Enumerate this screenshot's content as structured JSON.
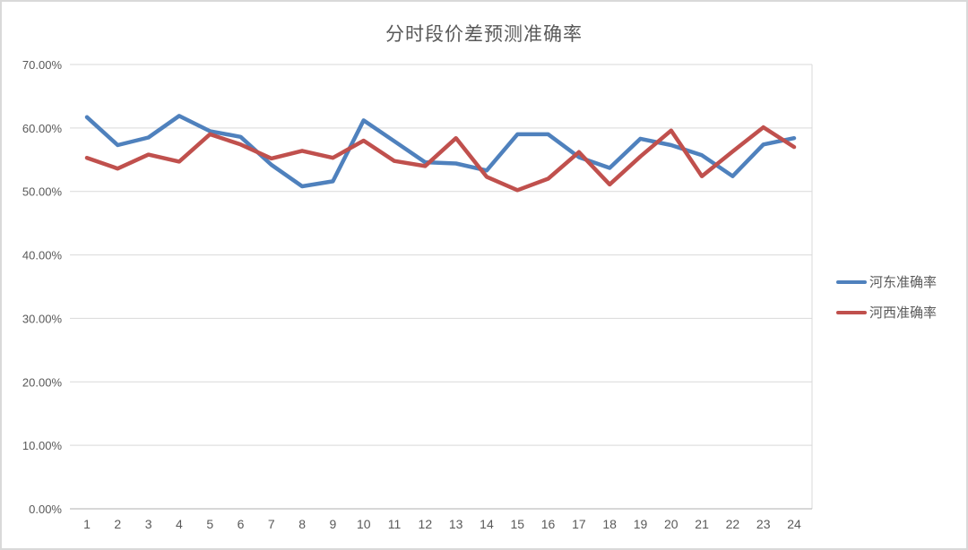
{
  "chart_data": {
    "type": "line",
    "title": "分时段价差预测准确率",
    "categories": [
      1,
      2,
      3,
      4,
      5,
      6,
      7,
      8,
      9,
      10,
      11,
      12,
      13,
      14,
      15,
      16,
      17,
      18,
      19,
      20,
      21,
      22,
      23,
      24
    ],
    "series": [
      {
        "name": "河东准确率",
        "color": "#4F81BD",
        "values": [
          61.7,
          57.3,
          58.5,
          61.9,
          59.5,
          58.6,
          54.2,
          50.8,
          51.6,
          61.2,
          57.9,
          54.6,
          54.4,
          53.3,
          59.0,
          59.0,
          55.4,
          53.7,
          58.3,
          57.3,
          55.7,
          52.4,
          57.4,
          58.4
        ]
      },
      {
        "name": "河西准确率",
        "color": "#C0504D",
        "values": [
          55.3,
          53.6,
          55.8,
          54.7,
          59.0,
          57.4,
          55.2,
          56.4,
          55.3,
          58.0,
          54.8,
          54.0,
          58.4,
          52.3,
          50.2,
          52.0,
          56.2,
          51.1,
          55.5,
          59.6,
          52.4,
          56.3,
          60.1,
          57.0
        ]
      }
    ],
    "ylim": [
      0,
      70
    ],
    "ytick_labels": [
      "0.00%",
      "10.00%",
      "20.00%",
      "30.00%",
      "40.00%",
      "50.00%",
      "60.00%",
      "70.00%"
    ],
    "xtick_labels": [
      "1",
      "2",
      "3",
      "4",
      "5",
      "6",
      "7",
      "8",
      "9",
      "10",
      "11",
      "12",
      "13",
      "14",
      "15",
      "16",
      "17",
      "18",
      "19",
      "20",
      "21",
      "22",
      "23",
      "24"
    ],
    "grid": "horizontal",
    "legend_position": "right"
  }
}
